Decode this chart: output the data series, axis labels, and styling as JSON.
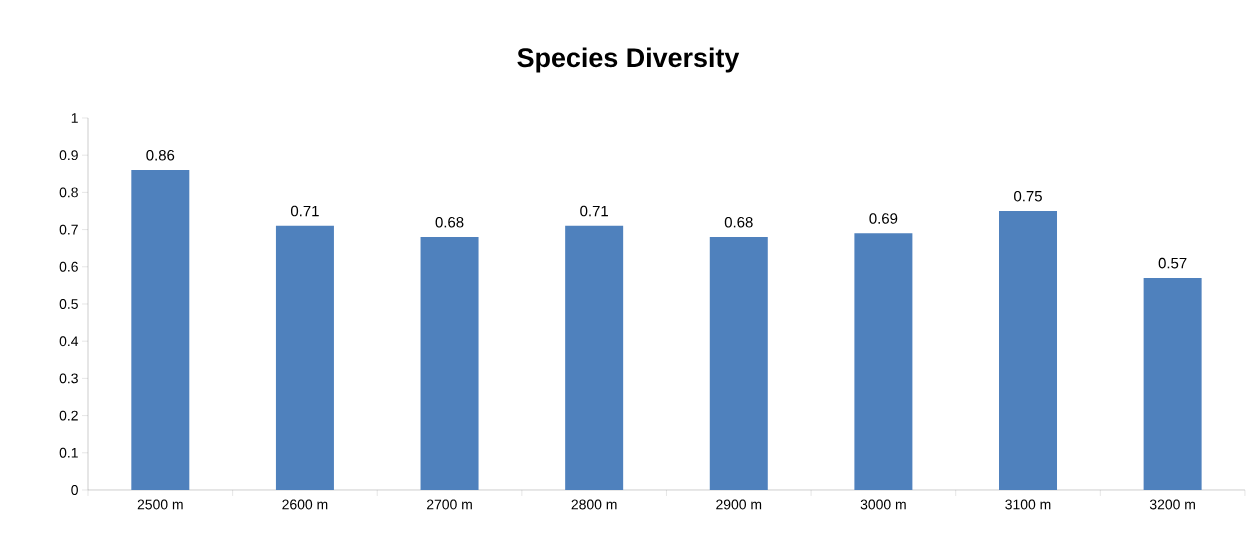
{
  "chart_data": {
    "type": "bar",
    "title": "Species Diversity",
    "categories": [
      "2500 m",
      "2600 m",
      "2700 m",
      "2800 m",
      "2900 m",
      "3000 m",
      "3100 m",
      "3200 m"
    ],
    "values": [
      0.86,
      0.71,
      0.68,
      0.71,
      0.68,
      0.69,
      0.75,
      0.57
    ],
    "color": "#4f81bd",
    "ylim": [
      0,
      1
    ],
    "yticks": [
      0,
      0.1,
      0.2,
      0.3,
      0.4,
      0.5,
      0.6,
      0.7,
      0.8,
      0.9,
      1
    ],
    "data_labels": true,
    "grid": false
  }
}
